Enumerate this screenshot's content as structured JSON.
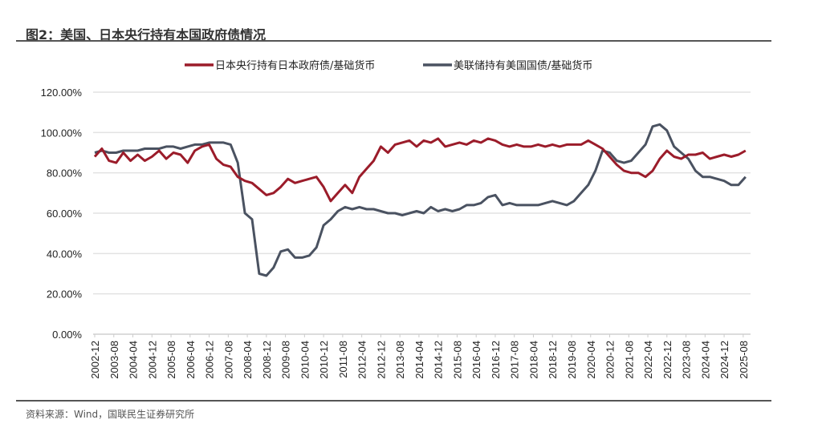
{
  "title": "图2：美国、日本央行持有本国政府债情况",
  "source": "资料来源：Wind，国联民生证券研究所",
  "chart_data": {
    "type": "line",
    "title": "",
    "xlabel": "",
    "ylabel": "",
    "ylim": [
      0,
      120
    ],
    "yticks": [
      "0.00%",
      "20.00%",
      "40.00%",
      "60.00%",
      "80.00%",
      "100.00%",
      "120.00%"
    ],
    "xticks": [
      "2002-12",
      "2003-08",
      "2004-04",
      "2004-12",
      "2005-08",
      "2006-04",
      "2006-12",
      "2007-08",
      "2008-04",
      "2008-12",
      "2009-08",
      "2010-04",
      "2010-12",
      "2011-08",
      "2012-04",
      "2012-12",
      "2013-08",
      "2014-04",
      "2014-12",
      "2015-08",
      "2016-04",
      "2016-12",
      "2017-08",
      "2018-04",
      "2018-12",
      "2019-08",
      "2020-04",
      "2020-12",
      "2021-08",
      "2022-04",
      "2022-12",
      "2023-08",
      "2024-04",
      "2024-12",
      "2025-08"
    ],
    "grid": true,
    "legend_position": "top",
    "x": [
      "2002-12",
      "2003-03",
      "2003-06",
      "2003-09",
      "2003-12",
      "2004-03",
      "2004-06",
      "2004-09",
      "2004-12",
      "2005-03",
      "2005-06",
      "2005-09",
      "2005-12",
      "2006-03",
      "2006-06",
      "2006-09",
      "2006-12",
      "2007-03",
      "2007-06",
      "2007-09",
      "2007-12",
      "2008-03",
      "2008-06",
      "2008-09",
      "2008-12",
      "2009-03",
      "2009-06",
      "2009-09",
      "2009-12",
      "2010-03",
      "2010-06",
      "2010-09",
      "2010-12",
      "2011-03",
      "2011-06",
      "2011-09",
      "2011-12",
      "2012-03",
      "2012-06",
      "2012-09",
      "2012-12",
      "2013-03",
      "2013-06",
      "2013-09",
      "2013-12",
      "2014-03",
      "2014-06",
      "2014-09",
      "2014-12",
      "2015-03",
      "2015-06",
      "2015-09",
      "2015-12",
      "2016-03",
      "2016-06",
      "2016-09",
      "2016-12",
      "2017-03",
      "2017-06",
      "2017-09",
      "2017-12",
      "2018-03",
      "2018-06",
      "2018-09",
      "2018-12",
      "2019-03",
      "2019-06",
      "2019-09",
      "2019-12",
      "2020-03",
      "2020-06",
      "2020-09",
      "2020-12",
      "2021-03",
      "2021-06",
      "2021-09",
      "2021-12",
      "2022-03",
      "2022-06",
      "2022-09",
      "2022-12",
      "2023-03",
      "2023-06",
      "2023-09",
      "2023-12",
      "2024-03",
      "2024-06",
      "2024-09",
      "2024-12",
      "2025-03",
      "2025-06",
      "2025-09"
    ],
    "series": [
      {
        "name": "日本央行持有日本政府债/基础货币",
        "color": "#9b1c2a",
        "values": [
          88,
          92,
          86,
          85,
          90,
          86,
          89,
          86,
          88,
          91,
          87,
          90,
          89,
          85,
          91,
          93,
          94,
          87,
          84,
          83,
          78,
          76,
          75,
          72,
          69,
          70,
          73,
          77,
          75,
          76,
          77,
          78,
          73,
          66,
          70,
          74,
          70,
          78,
          82,
          86,
          93,
          90,
          94,
          95,
          96,
          93,
          96,
          95,
          97,
          93,
          94,
          95,
          94,
          96,
          95,
          97,
          96,
          94,
          93,
          94,
          93,
          93,
          94,
          93,
          94,
          93,
          94,
          94,
          94,
          96,
          94,
          92,
          88,
          84,
          81,
          80,
          80,
          78,
          81,
          87,
          91,
          88,
          87,
          89,
          89,
          90,
          87,
          88,
          89,
          88,
          89,
          91
        ]
      },
      {
        "name": "美联储持有美国国债/基础货币",
        "color": "#4a5261",
        "values": [
          90,
          91,
          90,
          90,
          91,
          91,
          91,
          92,
          92,
          92,
          93,
          93,
          92,
          93,
          94,
          94,
          95,
          95,
          95,
          94,
          85,
          60,
          57,
          30,
          29,
          33,
          41,
          42,
          38,
          38,
          39,
          43,
          54,
          57,
          61,
          63,
          62,
          63,
          62,
          62,
          61,
          60,
          60,
          59,
          60,
          61,
          60,
          63,
          61,
          62,
          61,
          62,
          64,
          64,
          65,
          68,
          69,
          64,
          65,
          64,
          64,
          64,
          64,
          65,
          66,
          65,
          64,
          66,
          70,
          74,
          81,
          91,
          90,
          86,
          85,
          86,
          90,
          94,
          103,
          104,
          101,
          93,
          90,
          87,
          81,
          78,
          78,
          77,
          76,
          74,
          74,
          78
        ]
      }
    ]
  }
}
